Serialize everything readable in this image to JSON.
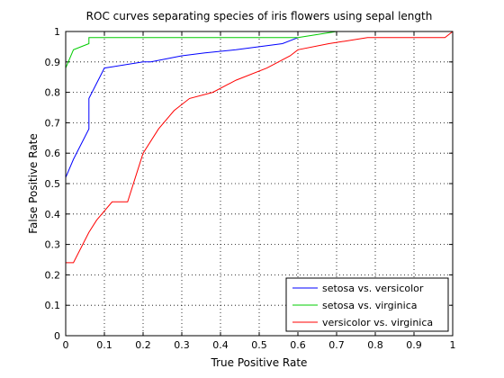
{
  "chart_data": {
    "type": "line",
    "title": "ROC curves separating species of iris flowers using sepal length",
    "xlabel": "True Positive Rate",
    "ylabel": "False Positive Rate",
    "xlim": [
      0,
      1
    ],
    "ylim": [
      0,
      1
    ],
    "xticks": [
      "0",
      "0.1",
      "0.2",
      "0.3",
      "0.4",
      "0.5",
      "0.6",
      "0.7",
      "0.8",
      "0.9",
      "1"
    ],
    "yticks": [
      "0",
      "0.1",
      "0.2",
      "0.3",
      "0.4",
      "0.5",
      "0.6",
      "0.7",
      "0.8",
      "0.9",
      "1"
    ],
    "grid": true,
    "grid_style": "dotted",
    "legend_position": "bottom-right",
    "series": [
      {
        "name": "setosa vs. versicolor",
        "color": "#0000ff",
        "x": [
          0,
          0.02,
          0.06,
          0.06,
          0.1,
          0.2,
          0.22,
          0.3,
          0.36,
          0.44,
          0.5,
          0.56,
          0.6
        ],
        "y": [
          0.52,
          0.58,
          0.68,
          0.78,
          0.88,
          0.9,
          0.9,
          0.92,
          0.93,
          0.94,
          0.95,
          0.96,
          0.98
        ]
      },
      {
        "name": "setosa vs. virginica",
        "color": "#00cc00",
        "x": [
          0,
          0.02,
          0.04,
          0.06,
          0.06,
          0.1,
          0.2,
          0.5,
          0.6,
          0.7,
          0.8,
          0.9,
          1
        ],
        "y": [
          0.88,
          0.94,
          0.95,
          0.96,
          0.98,
          0.98,
          0.98,
          0.98,
          0.98,
          1,
          1,
          1,
          1
        ]
      },
      {
        "name": "versicolor vs. virginica",
        "color": "#ff0000",
        "x": [
          0,
          0.02,
          0.06,
          0.08,
          0.12,
          0.16,
          0.18,
          0.2,
          0.24,
          0.28,
          0.32,
          0.38,
          0.44,
          0.52,
          0.58,
          0.6,
          0.68,
          0.78,
          0.84,
          0.9,
          0.96,
          0.98,
          1
        ],
        "y": [
          0.24,
          0.24,
          0.34,
          0.38,
          0.44,
          0.44,
          0.52,
          0.6,
          0.68,
          0.74,
          0.78,
          0.8,
          0.84,
          0.88,
          0.92,
          0.94,
          0.96,
          0.98,
          0.98,
          0.98,
          0.98,
          0.98,
          1
        ]
      }
    ]
  }
}
